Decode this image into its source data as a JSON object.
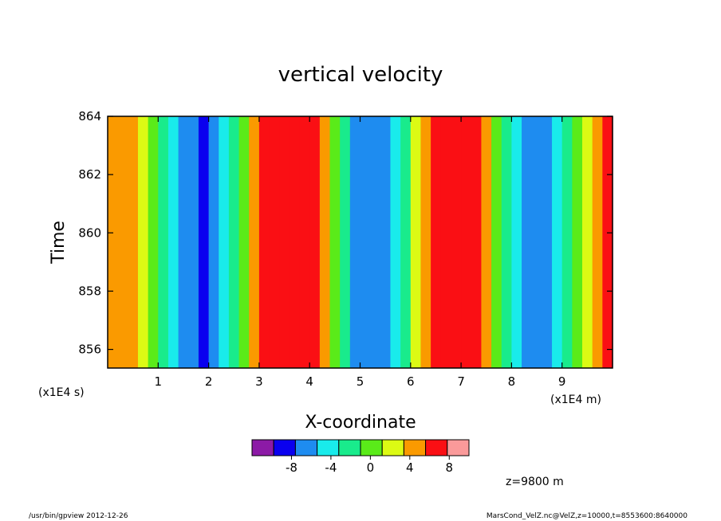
{
  "chart_data": {
    "type": "heatmap",
    "title": "vertical velocity",
    "xlabel": "X-coordinate",
    "ylabel": "Time",
    "x_unit": "(x1E4 m)",
    "y_unit": "(x1E4 s)",
    "xlim": [
      0,
      10
    ],
    "ylim": [
      855.36,
      864
    ],
    "x_ticks": [
      "1",
      "2",
      "3",
      "4",
      "5",
      "6",
      "7",
      "8",
      "9"
    ],
    "y_ticks": [
      "856",
      "858",
      "860",
      "862",
      "864"
    ],
    "x_tick_values": [
      1,
      2,
      3,
      4,
      5,
      6,
      7,
      8,
      9
    ],
    "y_tick_values": [
      856,
      858,
      860,
      862,
      864
    ],
    "colorbar": {
      "colors": [
        "#8c1aa6",
        "#0a00ef",
        "#1e8cf0",
        "#19ebeb",
        "#19eb8c",
        "#5aeb19",
        "#dcfa14",
        "#fa9a00",
        "#fa0f14",
        "#fa9a9a"
      ],
      "labels": [
        "-8",
        "-4",
        "0",
        "4",
        "8"
      ],
      "label_values": [
        -8,
        -4,
        0,
        4,
        8
      ],
      "boundaries": [
        -12,
        -10,
        -8,
        -6,
        -4,
        -2,
        0,
        2,
        4,
        6,
        8,
        10
      ]
    },
    "level_colors": [
      "#0a00ef",
      "#1e8cf0",
      "#19ebeb",
      "#19eb8c",
      "#5aeb19",
      "#dcfa14",
      "#fa9a00",
      "#fa0f14"
    ],
    "level_min": -10,
    "level_step": 2,
    "columns": [
      {
        "x": 0.1,
        "w": 3
      },
      {
        "x": 0.3,
        "w": 3
      },
      {
        "x": 0.5,
        "w": 2
      },
      {
        "x": 0.7,
        "w": 0
      },
      {
        "x": 0.9,
        "w": -2
      },
      {
        "x": 1.1,
        "w": -4
      },
      {
        "x": 1.3,
        "w": -6
      },
      {
        "x": 1.5,
        "w": -7
      },
      {
        "x": 1.7,
        "w": -8
      },
      {
        "x": 1.9,
        "w": -9
      },
      {
        "x": 2.1,
        "w": -8
      },
      {
        "x": 2.3,
        "w": -6
      },
      {
        "x": 2.5,
        "w": -4
      },
      {
        "x": 2.7,
        "w": -1
      },
      {
        "x": 2.9,
        "w": 2
      },
      {
        "x": 3.1,
        "w": 4
      },
      {
        "x": 3.3,
        "w": 6
      },
      {
        "x": 3.5,
        "w": 7
      },
      {
        "x": 3.7,
        "w": 8
      },
      {
        "x": 3.9,
        "w": 7
      },
      {
        "x": 4.1,
        "w": 5
      },
      {
        "x": 4.3,
        "w": 2
      },
      {
        "x": 4.5,
        "w": -1
      },
      {
        "x": 4.7,
        "w": -4
      },
      {
        "x": 4.9,
        "w": -7
      },
      {
        "x": 5.1,
        "w": -8
      },
      {
        "x": 5.3,
        "w": -8
      },
      {
        "x": 5.5,
        "w": -7
      },
      {
        "x": 5.7,
        "w": -5
      },
      {
        "x": 5.9,
        "w": -3
      },
      {
        "x": 6.1,
        "w": 0
      },
      {
        "x": 6.3,
        "w": 2
      },
      {
        "x": 6.5,
        "w": 4
      },
      {
        "x": 6.7,
        "w": 6
      },
      {
        "x": 6.9,
        "w": 8
      },
      {
        "x": 7.1,
        "w": 7
      },
      {
        "x": 7.3,
        "w": 5
      },
      {
        "x": 7.5,
        "w": 2
      },
      {
        "x": 7.7,
        "w": -1
      },
      {
        "x": 7.9,
        "w": -3
      },
      {
        "x": 8.1,
        "w": -5
      },
      {
        "x": 8.3,
        "w": -7
      },
      {
        "x": 8.5,
        "w": -8
      },
      {
        "x": 8.7,
        "w": -7
      },
      {
        "x": 8.9,
        "w": -6
      },
      {
        "x": 9.1,
        "w": -4
      },
      {
        "x": 9.3,
        "w": -2
      },
      {
        "x": 9.5,
        "w": 0
      },
      {
        "x": 9.7,
        "w": 3
      },
      {
        "x": 9.9,
        "w": 5
      }
    ],
    "annotation": "z=9800 m",
    "footer_left": "/usr/bin/gpview   2012-12-26",
    "footer_right": "MarsCond_VelZ.nc@VelZ,z=10000,t=8553600:8640000"
  }
}
